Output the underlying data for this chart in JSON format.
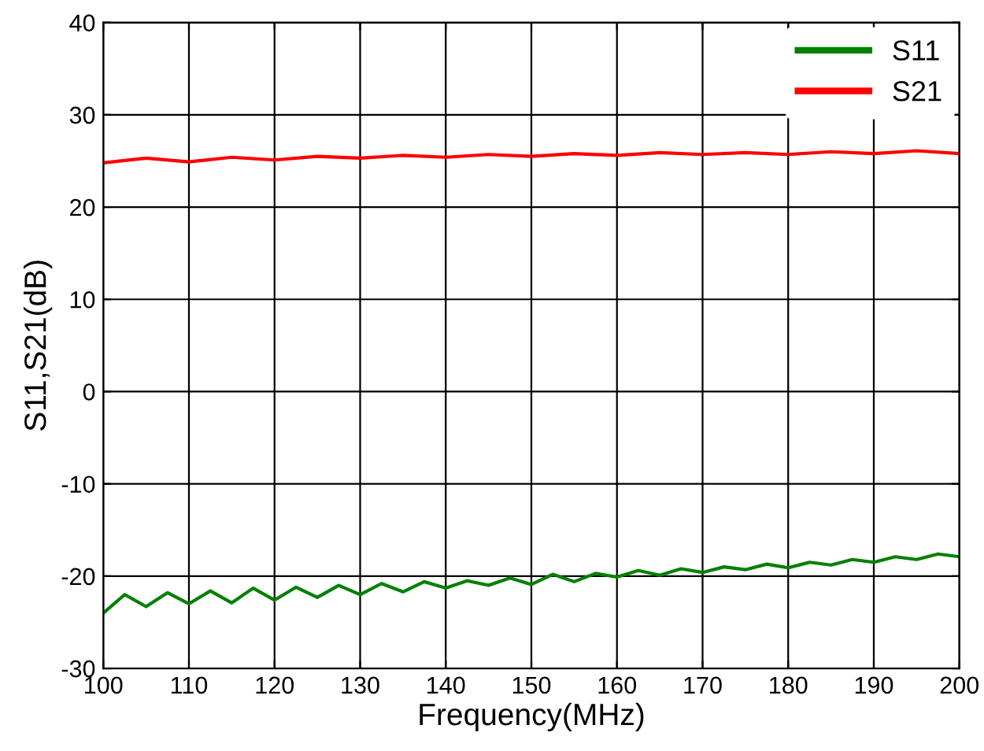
{
  "chart_data": {
    "type": "line",
    "xlabel": "Frequency(MHz)",
    "ylabel": "S11,S21(dB)",
    "xlim": [
      100,
      200
    ],
    "xticks": [
      100,
      110,
      120,
      130,
      140,
      150,
      160,
      170,
      180,
      190,
      200
    ],
    "ylim": [
      -30,
      40
    ],
    "yticks": [
      -30,
      -20,
      -10,
      0,
      10,
      20,
      30,
      40
    ],
    "grid": true,
    "legend": "top right",
    "series": [
      {
        "name": "S11",
        "color": "#008000",
        "x": [
          100,
          102.5,
          105,
          107.5,
          110,
          112.5,
          115,
          117.5,
          120,
          122.5,
          125,
          127.5,
          130,
          132.5,
          135,
          137.5,
          140,
          142.5,
          145,
          147.5,
          150,
          152.5,
          155,
          157.5,
          160,
          162.5,
          165,
          167.5,
          170,
          172.5,
          175,
          177.5,
          180,
          182.5,
          185,
          187.5,
          190,
          192.5,
          195,
          197.5,
          200
        ],
        "values": [
          -24.0,
          -22.0,
          -23.3,
          -21.8,
          -23.0,
          -21.6,
          -22.9,
          -21.3,
          -22.6,
          -21.2,
          -22.3,
          -21.0,
          -22.0,
          -20.8,
          -21.7,
          -20.6,
          -21.3,
          -20.5,
          -21.0,
          -20.2,
          -20.9,
          -19.8,
          -20.6,
          -19.7,
          -20.1,
          -19.4,
          -19.9,
          -19.2,
          -19.6,
          -19.0,
          -19.3,
          -18.7,
          -19.1,
          -18.5,
          -18.8,
          -18.2,
          -18.5,
          -17.9,
          -18.2,
          -17.6,
          -17.9
        ]
      },
      {
        "name": "S21",
        "color": "#ff0000",
        "x": [
          100,
          105,
          110,
          115,
          120,
          125,
          130,
          135,
          140,
          145,
          150,
          155,
          160,
          165,
          170,
          175,
          180,
          185,
          190,
          195,
          200
        ],
        "values": [
          24.8,
          25.3,
          24.9,
          25.4,
          25.1,
          25.5,
          25.3,
          25.6,
          25.4,
          25.7,
          25.5,
          25.8,
          25.6,
          25.9,
          25.7,
          25.9,
          25.7,
          26.0,
          25.8,
          26.1,
          25.8
        ]
      }
    ]
  }
}
